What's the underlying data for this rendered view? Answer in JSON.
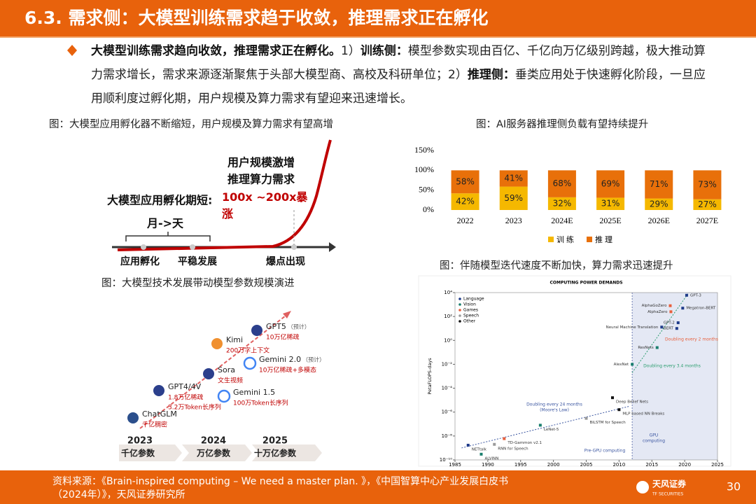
{
  "header": {
    "title": "6.3. 需求侧：大模型训练需求趋于收敛，推理需求正在孵化"
  },
  "bullet": {
    "parts": [
      {
        "text": "大模型训练需求趋向收敛，推理需求正在孵化。",
        "bold": true
      },
      {
        "text": "1）",
        "bold": false
      },
      {
        "text": "训练侧：",
        "bold": true
      },
      {
        "text": "模型参数实现由百亿、千亿向万亿级别跨越，极大推动算力需求增长，需求来源逐渐聚焦于头部大模型商、高校及科研单位；",
        "bold": false
      },
      {
        "text": "2）",
        "bold": false
      },
      {
        "text": "推理侧：",
        "bold": true
      },
      {
        "text": "垂类应用处于快速孵化阶段，一旦应用顺利度过孵化期，用户规模及算力需求有望迎来迅速增长。",
        "bold": false
      }
    ]
  },
  "figure1": {
    "caption": "图：大模型应用孵化器不断缩短，用户规模及算力需求有望高增",
    "labels": [
      "用户规模激增",
      "推理算力需求"
    ],
    "surge": "100x ~200x暴涨",
    "incubation": "大模型应用孵化期短:",
    "span": "月->天",
    "stages": [
      "应用孵化",
      "平稳发展",
      "爆点出现"
    ]
  },
  "figure2": {
    "caption": "图：大模型技术发展带动模型参数规模演进",
    "models": [
      {
        "name": "ChatGLM",
        "notes": [
          "千亿稠密"
        ]
      },
      {
        "name": "GPT4/4V",
        "notes": [
          "1.8万亿稀疏",
          "3.2万Token长序列"
        ]
      },
      {
        "name": "Sora",
        "notes": [
          "文生视频"
        ]
      },
      {
        "name": "Gemini 1.5",
        "notes": [
          "100万Token长序列"
        ]
      },
      {
        "name": "Kimi",
        "notes": [
          "200万字上下文"
        ]
      },
      {
        "name": "Gemini 2.0",
        "tag": "（预计）",
        "notes": [
          "10万亿稀疏+多模态"
        ]
      },
      {
        "name": "GPT5",
        "tag": "（预计）",
        "notes": [
          "10万亿稀疏"
        ]
      }
    ],
    "stages": [
      {
        "year": "2023",
        "scale": "千亿参数"
      },
      {
        "year": "2024",
        "scale": "万亿参数"
      },
      {
        "year": "2025",
        "scale": "十万亿参数"
      }
    ]
  },
  "figure3": {
    "caption": "图：AI服务器推理侧负载有望持续提升"
  },
  "figure4": {
    "caption": "图：伴随模型迭代速度不断加快，算力需求迅速提升"
  },
  "chart_data": [
    {
      "type": "stacked_bar",
      "categories": [
        "2022",
        "2023",
        "2024E",
        "2025E",
        "2026E",
        "2027E"
      ],
      "series": [
        {
          "name": "训练",
          "color": "#f5b800",
          "values": [
            42,
            59,
            32,
            31,
            29,
            27
          ],
          "value_labels": [
            "42%",
            "59%",
            "32%",
            "31%",
            "29%",
            "27%"
          ]
        },
        {
          "name": "推理",
          "color": "#e8700a",
          "values": [
            58,
            41,
            68,
            69,
            71,
            73
          ],
          "value_labels": [
            "58%",
            "41%",
            "68%",
            "69%",
            "71%",
            "73%"
          ]
        }
      ],
      "ylim": [
        0,
        150
      ],
      "yticks": [
        {
          "value": 0,
          "label": "0%"
        },
        {
          "value": 50,
          "label": "50%"
        },
        {
          "value": 100,
          "label": "100%"
        },
        {
          "value": 150,
          "label": "150%"
        }
      ],
      "legend": "bottom"
    },
    {
      "type": "scatter",
      "title": "COMPUTING POWER DEMANDS",
      "ylabel": "PetaFLOPS-days",
      "log_y": true,
      "xlim": [
        1985,
        2025
      ],
      "xticks": [
        1985,
        1990,
        1995,
        2000,
        2005,
        2010,
        2015,
        2020,
        2025
      ],
      "ylim": [
        1e-10,
        10000
      ],
      "yticks": [
        {
          "value": 1e-10,
          "label": "10⁻¹⁰"
        },
        {
          "value": 1e-08,
          "label": "10⁻⁸"
        },
        {
          "value": 1e-06,
          "label": "10⁻⁶"
        },
        {
          "value": 0.0001,
          "label": "10⁻⁴"
        },
        {
          "value": 0.01,
          "label": "10⁻²"
        },
        {
          "value": 1,
          "label": "10⁰"
        },
        {
          "value": 100,
          "label": "10²"
        },
        {
          "value": 10000,
          "label": "10⁴"
        }
      ],
      "series": [
        {
          "name": "Language",
          "color": "#1f3b8a",
          "x": [
            1987,
            2016.5,
            2018.8,
            2019,
            2019.7,
            2020.3
          ],
          "values": [
            1.7e-09,
            13,
            10,
            30,
            500,
            6000
          ],
          "labels": [
            "NETtalk",
            "Neural Machine Translation",
            "BERT",
            "GPT-2",
            "Megatron-BERT",
            "GPT-3"
          ]
        },
        {
          "name": "Vision",
          "color": "#1a7f6e",
          "x": [
            1989,
            1998,
            2012,
            2015.8
          ],
          "values": [
            3e-10,
            8e-08,
            0.01,
            0.25
          ],
          "labels": [
            "ALVINN",
            "LeNet-5",
            "AlexNet",
            "ResNets"
          ]
        },
        {
          "name": "Games",
          "color": "#e8603c",
          "x": [
            1992.5,
            2017.8,
            2017.9
          ],
          "values": [
            6e-09,
            800,
            250
          ],
          "labels": [
            "TD-Gammon v2.1",
            "AlphaGoZero",
            "AlphaZero"
          ]
        },
        {
          "name": "Speech",
          "color": "#9a9a9a",
          "x": [
            1991,
            2005
          ],
          "values": [
            2e-09,
            3e-07
          ],
          "labels": [
            "RNN for Speech",
            "BiLSTM for Speech"
          ]
        },
        {
          "name": "Other",
          "color": "#111111",
          "x": [
            2009,
            2010
          ],
          "values": [
            1.6e-05,
            1.6e-06
          ],
          "labels": [
            "Deep Belief Nets",
            "MLP based NN Breaks"
          ]
        }
      ],
      "annotations": [
        [
          "Doubling every 24 months",
          "(Moore's Law)"
        ],
        [
          "Doubling every 3.4 months"
        ],
        [
          "Doubling every 2 months"
        ],
        [
          "GPU",
          "computing"
        ],
        [
          "Pre-GPU computing"
        ]
      ]
    }
  ],
  "footer": {
    "source_lines": [
      "资料来源：《Brain-inspired computing – We need a master plan. 》，《中国智算中心产业发展白皮书",
      "（2024年）》，天风证券研究所"
    ],
    "logo": "天风证券",
    "logo_en": "TF SECURITIES",
    "page": "30"
  }
}
